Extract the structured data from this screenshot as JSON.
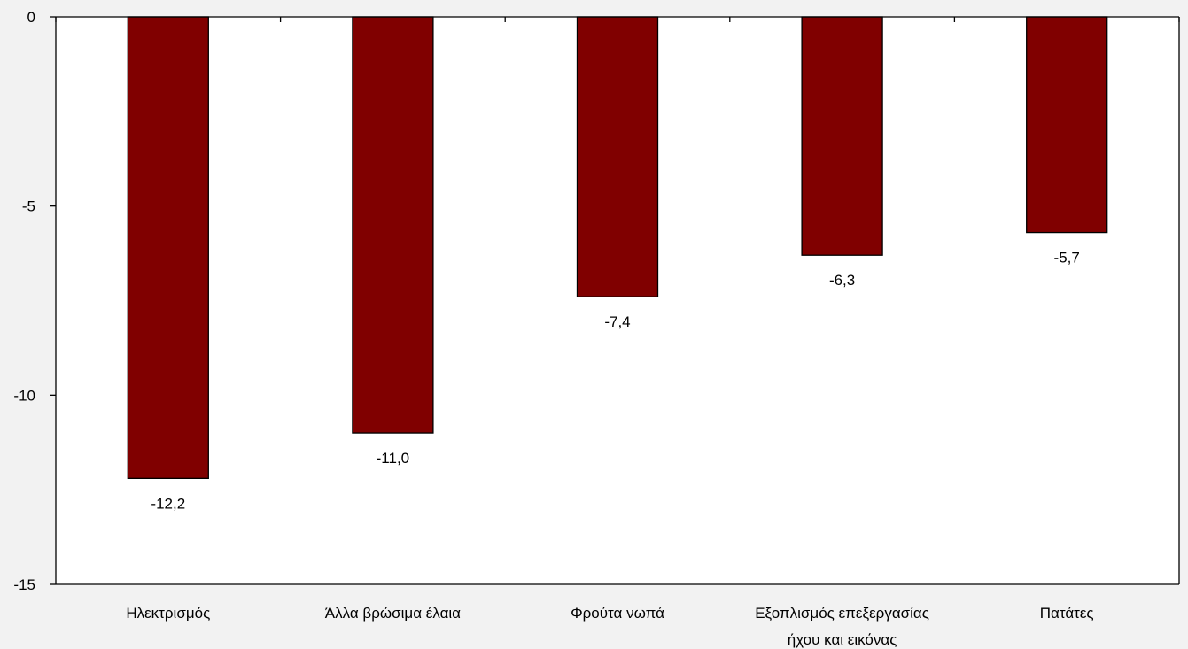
{
  "colors": {
    "background": "#f2f2f2",
    "plot_area": "#ffffff",
    "bar_fill": "#800000",
    "bar_stroke": "#000000",
    "axis": "#000000",
    "text": "#000000"
  },
  "chart_data": {
    "type": "bar",
    "title": "",
    "xlabel": "",
    "ylabel": "",
    "categories": [
      [
        "Ηλεκτρισμός"
      ],
      [
        "Άλλα βρώσιμα έλαια"
      ],
      [
        "Φρούτα νωπά"
      ],
      [
        "Εξοπλισμός επεξεργασίας",
        "ήχου και εικόνας"
      ],
      [
        "Πατάτες"
      ]
    ],
    "values": [
      -12.2,
      -11.0,
      -7.4,
      -6.3,
      -5.7
    ],
    "data_labels": [
      "-12,2",
      "-11,0",
      "-7,4",
      "-6,3",
      "-5,7"
    ],
    "ylim": [
      -15,
      0
    ],
    "yticks": [
      0,
      -5,
      -10,
      -15
    ],
    "ytick_labels": [
      "0",
      "-5",
      "-10",
      "-15"
    ],
    "grid": false,
    "legend": "none"
  }
}
